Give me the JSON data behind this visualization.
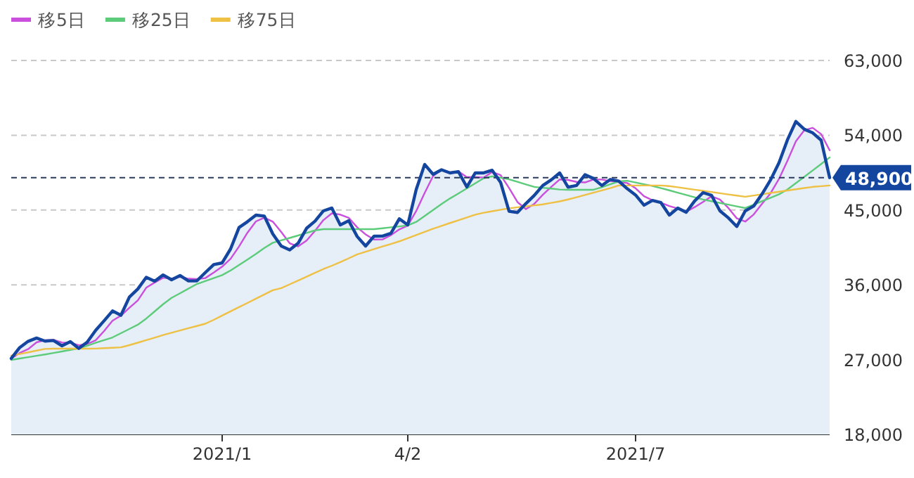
{
  "chart_data": {
    "type": "line",
    "categories": [
      null,
      null,
      null,
      null,
      null,
      null,
      null,
      null,
      null,
      null,
      null,
      null,
      null,
      null,
      null,
      null,
      null,
      null,
      null,
      null,
      null,
      null,
      null,
      null,
      null,
      "2021/1",
      null,
      null,
      null,
      null,
      null,
      null,
      null,
      null,
      null,
      null,
      null,
      null,
      null,
      null,
      null,
      null,
      null,
      null,
      null,
      null,
      null,
      "4/2",
      null,
      null,
      null,
      null,
      null,
      null,
      null,
      null,
      null,
      null,
      null,
      null,
      null,
      null,
      null,
      null,
      null,
      null,
      null,
      null,
      null,
      null,
      null,
      null,
      null,
      null,
      "2021/7",
      null,
      null,
      null,
      null,
      null,
      null,
      null,
      null,
      null,
      null,
      null,
      null,
      null,
      null,
      null,
      null,
      null,
      null,
      null,
      null,
      null,
      null,
      null
    ],
    "series": [
      {
        "type": "area",
        "color": "#1446a0",
        "values": [
          27140,
          28450,
          29200,
          29600,
          29230,
          29300,
          28660,
          29170,
          28350,
          29100,
          30520,
          31670,
          32860,
          32340,
          34530,
          35500,
          36910,
          36440,
          37190,
          36610,
          37120,
          36470,
          36480,
          37480,
          38440,
          38640,
          40330,
          42900,
          43600,
          44390,
          44270,
          42130,
          40670,
          40200,
          41000,
          42800,
          43660,
          44900,
          45240,
          43210,
          43720,
          41820,
          40670,
          41850,
          41860,
          42200,
          43950,
          43210,
          47480,
          50490,
          49300,
          49850,
          49470,
          49620,
          47780,
          49470,
          49470,
          49790,
          48330,
          44860,
          44700,
          45780,
          46770,
          47950,
          48630,
          49470,
          47750,
          47950,
          49250,
          48800,
          47950,
          48680,
          48480,
          47580,
          46810,
          45580,
          46160,
          45900,
          44390,
          45240,
          44730,
          46090,
          47100,
          46770,
          44900,
          44060,
          43020,
          44900,
          45480,
          46940,
          48630,
          50690,
          53450,
          55660,
          54720,
          54280,
          53400,
          48900
        ]
      },
      {
        "name": "移5日",
        "color": "#c94fdc",
        "values": [
          27140,
          27800,
          28260,
          29080,
          29340,
          29380,
          29060,
          29040,
          28730,
          28870,
          29320,
          30430,
          31680,
          32290,
          33240,
          34120,
          35650,
          36280,
          36850,
          36750,
          36970,
          36730,
          36690,
          36810,
          37470,
          38190,
          39140,
          40620,
          42280,
          43630,
          44090,
          43600,
          42360,
          41000,
          40620,
          41330,
          42490,
          43790,
          44600,
          44450,
          44060,
          42920,
          42070,
          41450,
          41460,
          41970,
          42670,
          43120,
          44880,
          47060,
          49090,
          49880,
          49540,
          49650,
          48960,
          48960,
          48910,
          49580,
          49200,
          47660,
          45960,
          45110,
          45750,
          46830,
          47780,
          48680,
          48620,
          48390,
          48320,
          48670,
          48670,
          48480,
          48370,
          48250,
          47620,
          46660,
          46180,
          45880,
          45480,
          45180,
          44790,
          45350,
          45970,
          46650,
          46260,
          45240,
          44000,
          43610,
          44470,
          45770,
          47020,
          48750,
          50920,
          53270,
          54610,
          54890,
          54130,
          52190
        ]
      },
      {
        "name": "移25日",
        "color": "#5ccc7a",
        "values": [
          26970,
          27130,
          27300,
          27460,
          27620,
          27800,
          27980,
          28170,
          28350,
          28670,
          29020,
          29350,
          29670,
          30180,
          30690,
          31200,
          31940,
          32800,
          33670,
          34430,
          34980,
          35540,
          36100,
          36460,
          36810,
          37170,
          37730,
          38390,
          39050,
          39720,
          40430,
          41060,
          41350,
          41640,
          41940,
          42250,
          42550,
          42700,
          42700,
          42700,
          42700,
          42700,
          42700,
          42700,
          42800,
          42920,
          43030,
          43150,
          43570,
          44290,
          45010,
          45730,
          46390,
          47000,
          47610,
          48220,
          48830,
          49050,
          48900,
          48700,
          48390,
          48080,
          47780,
          47680,
          47580,
          47470,
          47440,
          47440,
          47440,
          47440,
          47740,
          48100,
          48450,
          48520,
          48310,
          48100,
          47890,
          47640,
          47370,
          47090,
          46810,
          46540,
          46260,
          46060,
          45850,
          45650,
          45440,
          45240,
          45650,
          46070,
          46480,
          46890,
          47480,
          48240,
          49000,
          49770,
          50550,
          51330
        ]
      },
      {
        "name": "移75日",
        "color": "#eec043",
        "values": [
          27480,
          27680,
          27880,
          28090,
          28290,
          28320,
          28320,
          28320,
          28320,
          28320,
          28330,
          28380,
          28430,
          28480,
          28740,
          29040,
          29350,
          29650,
          29960,
          30240,
          30510,
          30780,
          31050,
          31320,
          31790,
          32300,
          32810,
          33320,
          33820,
          34330,
          34840,
          35350,
          35600,
          36060,
          36520,
          36980,
          37440,
          37900,
          38300,
          38730,
          39190,
          39660,
          39990,
          40300,
          40610,
          40920,
          41240,
          41620,
          42000,
          42370,
          42750,
          43100,
          43440,
          43770,
          44110,
          44450,
          44680,
          44860,
          45030,
          45210,
          45330,
          45440,
          45560,
          45680,
          45860,
          46040,
          46270,
          46540,
          46810,
          47080,
          47360,
          47630,
          47950,
          47950,
          47950,
          47950,
          47950,
          47950,
          47880,
          47740,
          47590,
          47450,
          47310,
          47170,
          47020,
          46880,
          46740,
          46600,
          46750,
          46900,
          47050,
          47200,
          47350,
          47500,
          47650,
          47790,
          47870,
          47950
        ]
      }
    ],
    "ylim": [
      18000,
      63000
    ],
    "yticks": [
      {
        "value": 18000,
        "label": "18,000"
      },
      {
        "value": 27000,
        "label": "27,000"
      },
      {
        "value": 36000,
        "label": "36,000"
      },
      {
        "value": 45000,
        "label": "45,000"
      },
      {
        "value": 54000,
        "label": "54,000"
      },
      {
        "value": 63000,
        "label": "63,000"
      }
    ],
    "ref_lines": [
      {
        "axis": "y",
        "value": 48900,
        "label": "48,900",
        "color": "#2b3b5c",
        "line_style": "dashed"
      }
    ],
    "grid": "y",
    "legend": "top left",
    "marker": "none",
    "line_style": "solid"
  }
}
